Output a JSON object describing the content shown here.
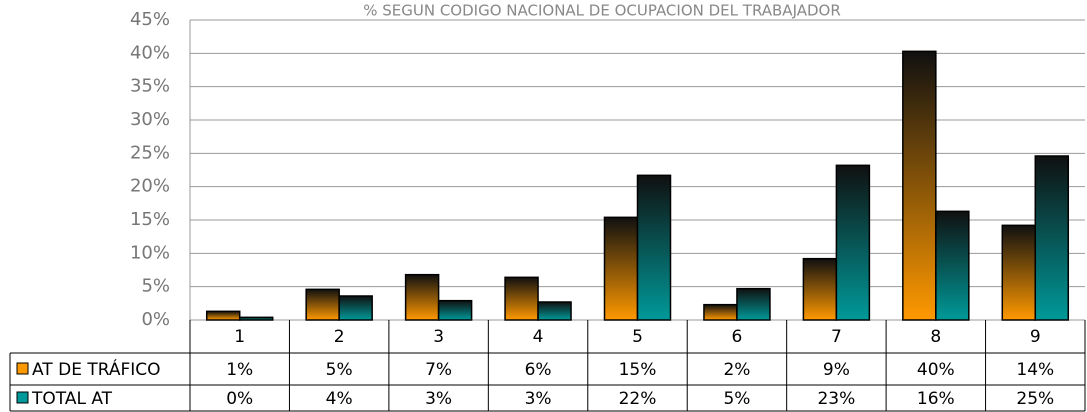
{
  "chart_data": {
    "type": "bar",
    "title": "% SEGUN CODIGO NACIONAL DE OCUPACION DEL TRABAJADOR",
    "categories": [
      "1",
      "2",
      "3",
      "4",
      "5",
      "6",
      "7",
      "8",
      "9"
    ],
    "series": [
      {
        "name": "AT DE TRÁFICO",
        "color": "#ff9900",
        "values": [
          1.3,
          4.6,
          6.8,
          6.4,
          15.4,
          2.3,
          9.2,
          40.3,
          14.2
        ],
        "value_labels": [
          "1%",
          "5%",
          "7%",
          "6%",
          "15%",
          "2%",
          "9%",
          "40%",
          "14%"
        ]
      },
      {
        "name": "TOTAL AT",
        "color": "#009999",
        "values": [
          0.4,
          3.6,
          2.9,
          2.7,
          21.7,
          4.7,
          23.2,
          16.3,
          24.6
        ],
        "value_labels": [
          "0%",
          "4%",
          "3%",
          "3%",
          "22%",
          "5%",
          "23%",
          "16%",
          "25%"
        ]
      }
    ],
    "ylim": [
      0,
      45
    ],
    "yticks": [
      {
        "value": 0,
        "label": "0%"
      },
      {
        "value": 5,
        "label": "5%"
      },
      {
        "value": 10,
        "label": "10%"
      },
      {
        "value": 15,
        "label": "15%"
      },
      {
        "value": 20,
        "label": "20%"
      },
      {
        "value": 25,
        "label": "25%"
      },
      {
        "value": 30,
        "label": "30%"
      },
      {
        "value": 35,
        "label": "35%"
      },
      {
        "value": 40,
        "label": "40%"
      },
      {
        "value": 45,
        "label": "45%"
      }
    ],
    "grid": true
  }
}
